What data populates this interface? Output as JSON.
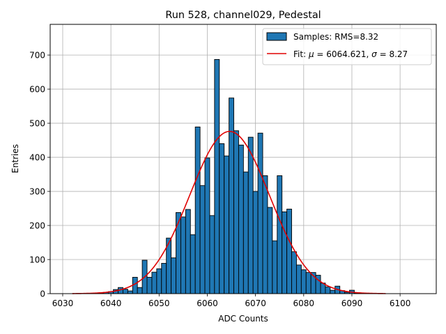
{
  "chart_data": {
    "type": "bar",
    "title": "Run 528, channel029, Pedestal",
    "xlabel": "ADC Counts",
    "ylabel": "Entries",
    "xlim": [
      6027.4,
      6107.5
    ],
    "ylim": [
      0,
      790
    ],
    "xticks": [
      6030,
      6040,
      6050,
      6060,
      6070,
      6080,
      6090,
      6100
    ],
    "yticks": [
      0,
      100,
      200,
      300,
      400,
      500,
      600,
      700
    ],
    "grid": true,
    "legend_position": "top-right",
    "bin_width": 1,
    "series": [
      {
        "name": "Samples: RMS=8.32",
        "kind": "histogram",
        "color": "#1f77b4",
        "bins": [
          [
            6036,
            1
          ],
          [
            6037,
            1
          ],
          [
            6038,
            2
          ],
          [
            6039,
            4
          ],
          [
            6040,
            6
          ],
          [
            6041,
            12
          ],
          [
            6042,
            18
          ],
          [
            6043,
            13
          ],
          [
            6044,
            8
          ],
          [
            6045,
            48
          ],
          [
            6046,
            18
          ],
          [
            6047,
            98
          ],
          [
            6048,
            48
          ],
          [
            6049,
            63
          ],
          [
            6050,
            73
          ],
          [
            6051,
            89
          ],
          [
            6052,
            163
          ],
          [
            6053,
            105
          ],
          [
            6054,
            238
          ],
          [
            6055,
            225
          ],
          [
            6056,
            247
          ],
          [
            6057,
            173
          ],
          [
            6058,
            489
          ],
          [
            6059,
            317
          ],
          [
            6060,
            398
          ],
          [
            6061,
            229
          ],
          [
            6062,
            687
          ],
          [
            6063,
            440
          ],
          [
            6064,
            404
          ],
          [
            6065,
            574
          ],
          [
            6066,
            478
          ],
          [
            6067,
            436
          ],
          [
            6068,
            357
          ],
          [
            6069,
            459
          ],
          [
            6070,
            300
          ],
          [
            6071,
            471
          ],
          [
            6072,
            346
          ],
          [
            6073,
            253
          ],
          [
            6074,
            155
          ],
          [
            6075,
            346
          ],
          [
            6076,
            240
          ],
          [
            6077,
            248
          ],
          [
            6078,
            123
          ],
          [
            6079,
            84
          ],
          [
            6080,
            70
          ],
          [
            6081,
            62
          ],
          [
            6082,
            62
          ],
          [
            6083,
            54
          ],
          [
            6084,
            31
          ],
          [
            6085,
            20
          ],
          [
            6086,
            10
          ],
          [
            6087,
            22
          ],
          [
            6088,
            9
          ],
          [
            6089,
            4
          ],
          [
            6090,
            10
          ],
          [
            6091,
            1
          ]
        ]
      },
      {
        "name": "Fit: μ = 6064.621, σ = 8.27",
        "name_parts": [
          "Fit: ",
          "μ",
          " = 6064.621, ",
          "σ",
          " = 8.27"
        ],
        "kind": "gaussian",
        "color": "#e00000",
        "mu": 6064.621,
        "sigma": 8.27,
        "amplitude": 476,
        "x_range": [
          6032,
          6097
        ]
      }
    ]
  }
}
